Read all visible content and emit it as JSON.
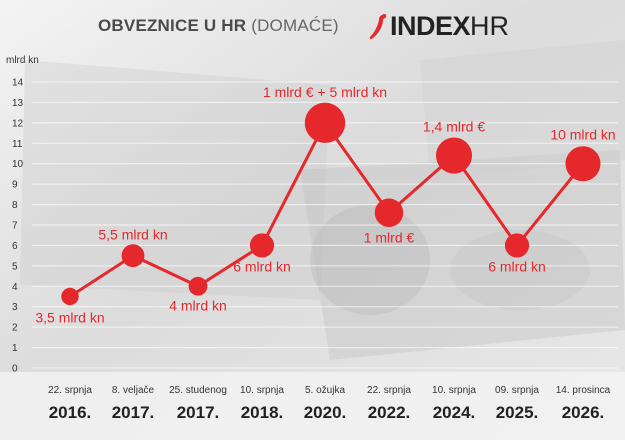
{
  "header": {
    "title_bold": "OBVEZNICE U HR",
    "title_rest": "(DOMAĆE)",
    "logo_main": "INDEX",
    "logo_suffix": "HR"
  },
  "colors": {
    "accent": "#e5282b",
    "label": "#e5282b",
    "axis_text": "#333333",
    "year_text": "#222222"
  },
  "chart_data": {
    "type": "line",
    "title": "OBVEZNICE U HR (DOMAĆE)",
    "ylabel": "mlrd kn",
    "xlabel": "",
    "ylim": [
      0,
      14
    ],
    "yticks": [
      0,
      1,
      2,
      3,
      4,
      5,
      6,
      7,
      8,
      9,
      10,
      11,
      12,
      13,
      14
    ],
    "grid": true,
    "categories": [
      {
        "date": "22. srpnja",
        "year": "2016."
      },
      {
        "date": "8. veljače",
        "year": "2017."
      },
      {
        "date": "25. studenog",
        "year": "2017."
      },
      {
        "date": "10. srpnja",
        "year": "2018."
      },
      {
        "date": "5. ožujka",
        "year": "2020."
      },
      {
        "date": "22. srpnja",
        "year": "2022."
      },
      {
        "date": "10. srpnja",
        "year": "2024."
      },
      {
        "date": "09. srpnja",
        "year": "2025."
      },
      {
        "date": "14. prosinca",
        "year": "2026."
      }
    ],
    "series": [
      {
        "values": [
          3.5,
          5.5,
          4,
          6,
          12,
          7.6,
          10.4,
          6,
          10
        ],
        "bubble_size": [
          3.5,
          5.5,
          4,
          6,
          12,
          7.6,
          10.4,
          6,
          10
        ],
        "labels": [
          "3,5 mlrd kn",
          "5,5 mlrd kn",
          "4 mlrd kn",
          "6 mlrd kn",
          "1 mlrd € + 5 mlrd kn",
          "1 mlrd €",
          "1,4 mlrd €",
          "6 mlrd kn",
          "10 mlrd kn"
        ]
      }
    ]
  }
}
